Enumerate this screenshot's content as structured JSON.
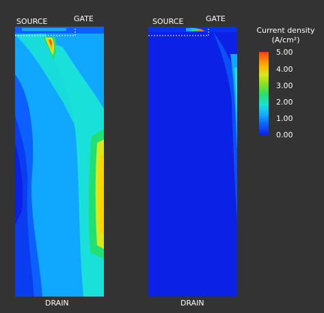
{
  "panels": {
    "left": {
      "source": "SOURCE",
      "gate": "GATE",
      "drain": "DRAIN"
    },
    "right": {
      "source": "SOURCE",
      "gate": "GATE",
      "drain": "DRAIN"
    }
  },
  "legend": {
    "title_line1": "Current density",
    "title_line2": "(A/cm²)",
    "ticks": [
      "5.00",
      "4.00",
      "3.00",
      "2.00",
      "1.00",
      "0.00"
    ]
  },
  "colors": {
    "background": "#333333",
    "low": "#0b22e6",
    "mid": "#19e0d8",
    "high": "#ff4010"
  }
}
